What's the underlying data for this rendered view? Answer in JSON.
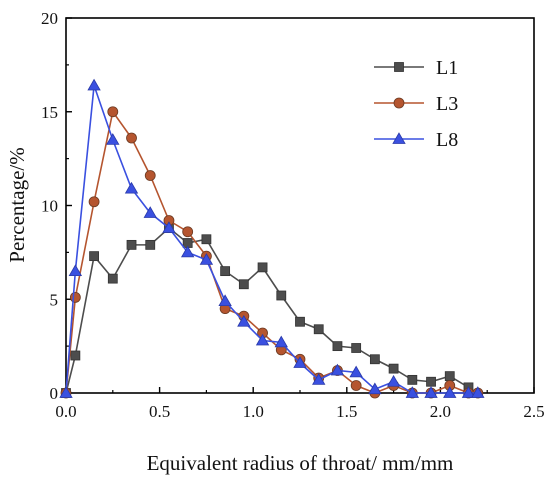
{
  "chart_data": {
    "type": "line",
    "title": "",
    "xlabel": "Equivalent radius of throat/ mm/mm",
    "ylabel": "Percentage/%",
    "xlim": [
      0,
      2.5
    ],
    "ylim": [
      0,
      20
    ],
    "xticks": [
      "0.0",
      "0.5",
      "1.0",
      "1.5",
      "2.0",
      "2.5"
    ],
    "yticks": [
      "0",
      "5",
      "10",
      "15",
      "20"
    ],
    "grid": false,
    "legend_position": "top-right",
    "series": [
      {
        "name": "L1",
        "color": "#4d4d4d",
        "marker": "square",
        "x": [
          0,
          0.05,
          0.15,
          0.25,
          0.35,
          0.45,
          0.55,
          0.65,
          0.75,
          0.85,
          0.95,
          1.05,
          1.15,
          1.25,
          1.35,
          1.45,
          1.55,
          1.65,
          1.75,
          1.85,
          1.95,
          2.05,
          2.15
        ],
        "y": [
          0,
          2.0,
          7.3,
          6.1,
          7.9,
          7.9,
          8.8,
          8.0,
          8.2,
          6.5,
          5.8,
          6.7,
          5.2,
          3.8,
          3.4,
          2.5,
          2.4,
          1.8,
          1.3,
          0.7,
          0.6,
          0.9,
          0.3
        ]
      },
      {
        "name": "L3",
        "color": "#b5552f",
        "marker": "circle",
        "x": [
          0,
          0.05,
          0.15,
          0.25,
          0.35,
          0.45,
          0.55,
          0.65,
          0.75,
          0.85,
          0.95,
          1.05,
          1.15,
          1.25,
          1.35,
          1.45,
          1.55,
          1.65,
          1.75,
          1.85,
          1.95,
          2.05,
          2.15,
          2.2
        ],
        "y": [
          0,
          5.1,
          10.2,
          15.0,
          13.6,
          11.6,
          9.2,
          8.6,
          7.3,
          4.5,
          4.1,
          3.2,
          2.3,
          1.8,
          0.8,
          1.2,
          0.4,
          0.0,
          0.4,
          0.0,
          0.0,
          0.4,
          0.0,
          0.0
        ]
      },
      {
        "name": "L8",
        "color": "#3a50e0",
        "marker": "triangle",
        "x": [
          0,
          0.05,
          0.15,
          0.25,
          0.35,
          0.45,
          0.55,
          0.65,
          0.75,
          0.85,
          0.95,
          1.05,
          1.15,
          1.25,
          1.35,
          1.45,
          1.55,
          1.65,
          1.75,
          1.85,
          1.95,
          2.05,
          2.15,
          2.2
        ],
        "y": [
          0,
          6.5,
          16.4,
          13.5,
          10.9,
          9.6,
          8.8,
          7.5,
          7.1,
          4.9,
          3.8,
          2.8,
          2.7,
          1.6,
          0.7,
          1.2,
          1.1,
          0.2,
          0.6,
          0.0,
          0.0,
          0.0,
          0.0,
          0.0
        ]
      }
    ]
  }
}
